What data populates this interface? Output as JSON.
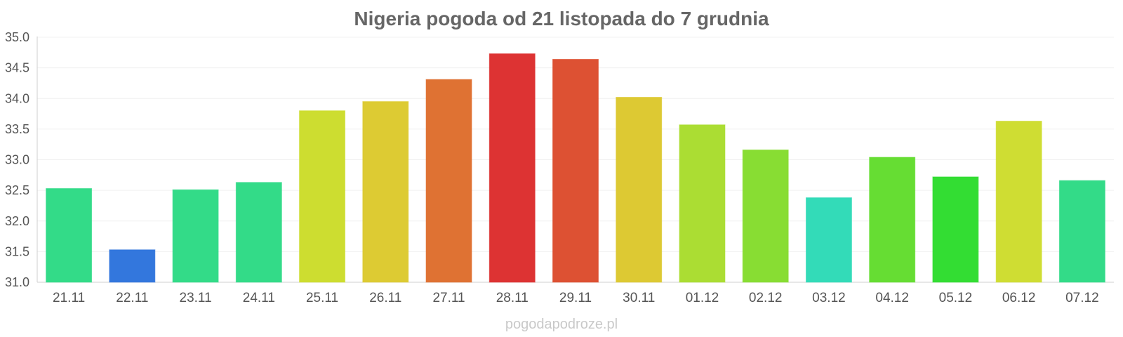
{
  "chart_data": {
    "type": "bar",
    "title": "Nigeria pogoda od 21 listopada do 7 grudnia",
    "xlabel": "",
    "ylabel": "",
    "ylim": [
      31.0,
      35.0
    ],
    "yticks": [
      "31.0",
      "31.5",
      "32.0",
      "32.5",
      "33.0",
      "33.5",
      "34.0",
      "34.5",
      "35.0"
    ],
    "categories": [
      "21.11",
      "22.11",
      "23.11",
      "24.11",
      "25.11",
      "26.11",
      "27.11",
      "28.11",
      "29.11",
      "30.11",
      "01.12",
      "02.12",
      "03.12",
      "04.12",
      "05.12",
      "06.12",
      "07.12"
    ],
    "values": [
      32.53,
      31.53,
      32.51,
      32.63,
      33.8,
      33.95,
      34.31,
      34.73,
      34.64,
      34.02,
      33.57,
      33.16,
      32.38,
      33.04,
      32.72,
      33.63,
      32.66
    ],
    "colors": [
      "#33db88",
      "#3377dd",
      "#33db88",
      "#33db88",
      "#cddd30",
      "#ddcb33",
      "#df7233",
      "#dd3333",
      "#dd5133",
      "#ddc933",
      "#abdd33",
      "#88dd33",
      "#33dbb8",
      "#66dd33",
      "#33dd33",
      "#cfdd33",
      "#33db88"
    ],
    "grid": true,
    "legend": "none"
  },
  "credit": "pogodapodroze.pl"
}
